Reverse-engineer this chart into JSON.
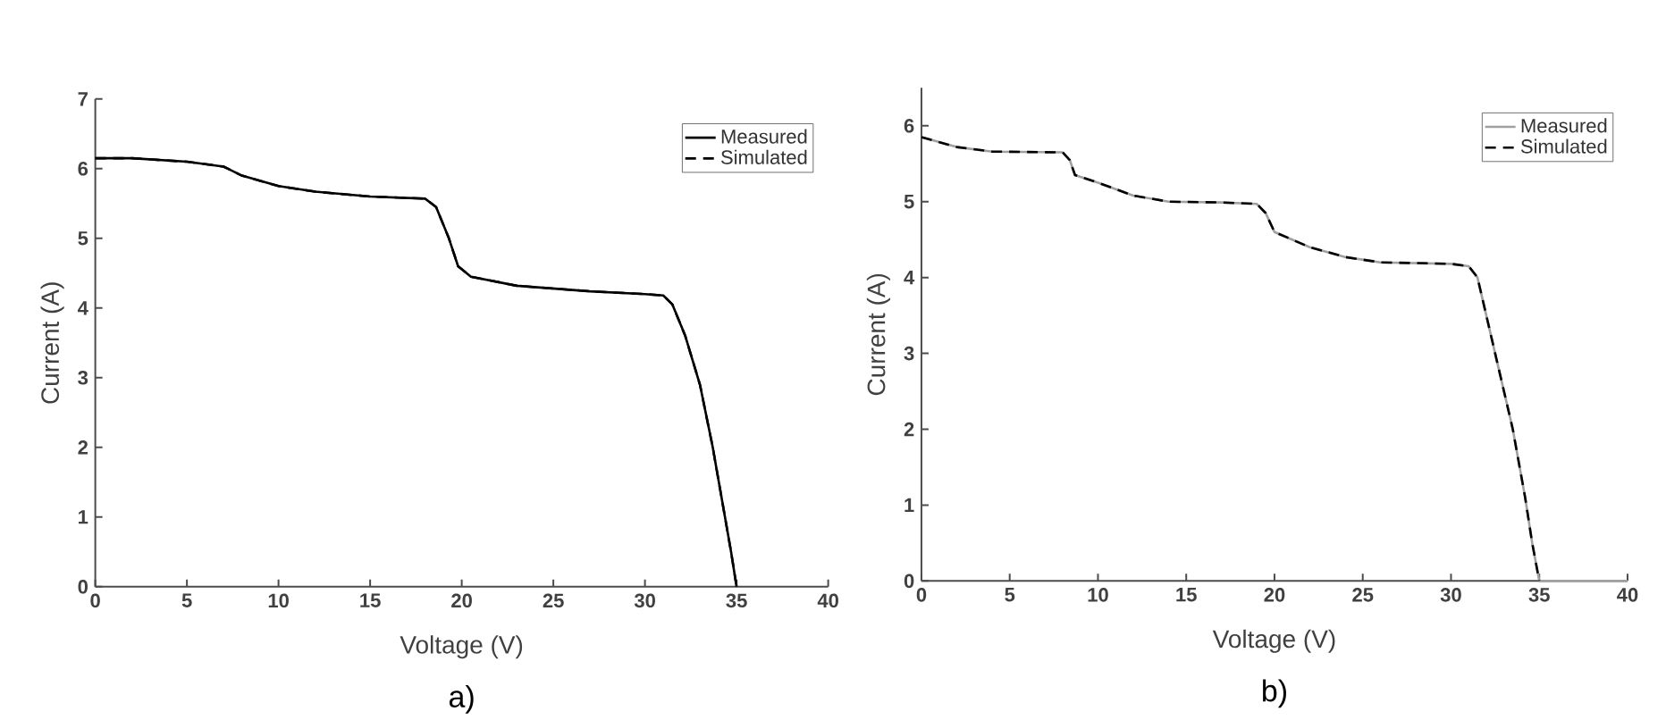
{
  "chart_data": [
    {
      "type": "line",
      "xlabel": "Voltage (V)",
      "ylabel": "Current (A)",
      "annotations": [
        "a)"
      ],
      "xlim": [
        0,
        40
      ],
      "ylim": [
        0,
        7
      ],
      "xticks": [
        0,
        5,
        10,
        15,
        20,
        25,
        30,
        35,
        40
      ],
      "yticks": [
        0,
        1,
        2,
        3,
        4,
        5,
        6,
        7
      ],
      "legend": "top right",
      "series": [
        {
          "name": "Measured",
          "color": "#000000",
          "line_style": "solid",
          "x": [
            0,
            2,
            5,
            7,
            8,
            10,
            12,
            15,
            18,
            18.6,
            19.3,
            19.8,
            20.5,
            23,
            27,
            30,
            31,
            31.5,
            32.2,
            33,
            33.7,
            34.3,
            34.7,
            35
          ],
          "values": [
            6.15,
            6.15,
            6.1,
            6.03,
            5.9,
            5.75,
            5.67,
            5.6,
            5.57,
            5.45,
            5.0,
            4.6,
            4.45,
            4.32,
            4.24,
            4.2,
            4.18,
            4.05,
            3.6,
            2.9,
            2.0,
            1.1,
            0.5,
            0
          ]
        },
        {
          "name": "Simulated",
          "color": "#000000",
          "line_style": "dashed",
          "x": [
            0,
            2,
            5,
            7,
            8,
            10,
            12,
            15,
            18,
            18.6,
            19.3,
            19.8,
            20.5,
            23,
            27,
            30,
            31,
            31.5,
            32.2,
            33,
            33.7,
            34.3,
            34.7,
            35
          ],
          "values": [
            6.15,
            6.15,
            6.1,
            6.03,
            5.9,
            5.75,
            5.67,
            5.6,
            5.57,
            5.45,
            5.0,
            4.6,
            4.45,
            4.32,
            4.24,
            4.2,
            4.18,
            4.05,
            3.6,
            2.9,
            2.0,
            1.1,
            0.5,
            0
          ]
        }
      ]
    },
    {
      "type": "line",
      "xlabel": "Voltage (V)",
      "ylabel": "Current (A)",
      "annotations": [
        "b)"
      ],
      "xlim": [
        0,
        40
      ],
      "ylim": [
        0,
        6.5
      ],
      "xticks": [
        0,
        5,
        10,
        15,
        20,
        25,
        30,
        35,
        40
      ],
      "yticks": [
        0,
        1,
        2,
        3,
        4,
        5,
        6
      ],
      "legend": "top right",
      "series": [
        {
          "name": "Measured",
          "color": "#a0a0a0",
          "line_style": "solid",
          "x": [
            0,
            2,
            4,
            8,
            8.4,
            8.7,
            10,
            12,
            14,
            17,
            19,
            19.5,
            20,
            22,
            24,
            26,
            30,
            31,
            31.5,
            32.5,
            33.5,
            34.2,
            34.6,
            35,
            40
          ],
          "values": [
            5.85,
            5.72,
            5.66,
            5.65,
            5.55,
            5.35,
            5.25,
            5.08,
            5.0,
            4.99,
            4.97,
            4.85,
            4.6,
            4.4,
            4.27,
            4.2,
            4.18,
            4.15,
            4.0,
            3.0,
            2.0,
            1.1,
            0.5,
            0,
            0
          ]
        },
        {
          "name": "Simulated",
          "color": "#000000",
          "line_style": "dashed",
          "x": [
            0,
            2,
            4,
            8,
            8.4,
            8.7,
            10,
            12,
            14,
            17,
            19,
            19.5,
            20,
            22,
            24,
            26,
            30,
            31,
            31.5,
            32.5,
            33.5,
            34.2,
            34.6,
            35
          ],
          "values": [
            5.85,
            5.72,
            5.66,
            5.65,
            5.55,
            5.35,
            5.25,
            5.08,
            5.0,
            4.99,
            4.97,
            4.85,
            4.6,
            4.4,
            4.27,
            4.2,
            4.18,
            4.15,
            4.0,
            3.0,
            2.0,
            1.1,
            0.5,
            0
          ]
        }
      ]
    }
  ]
}
